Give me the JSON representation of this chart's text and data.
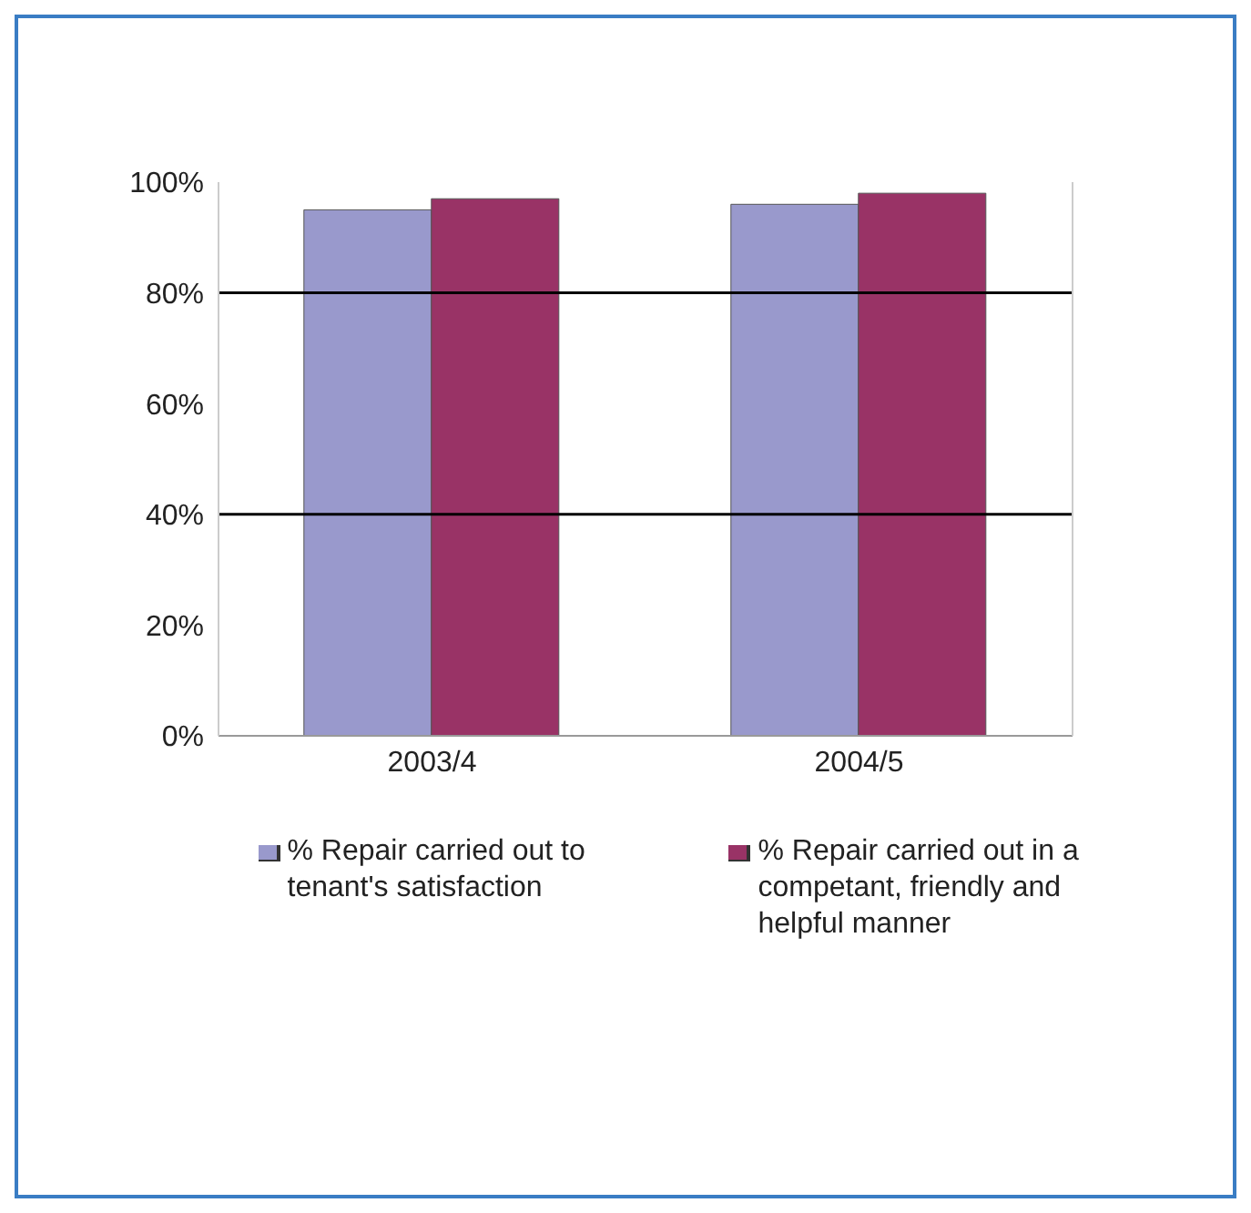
{
  "chart_data": {
    "type": "bar",
    "categories": [
      "2003/4",
      "2004/5"
    ],
    "series": [
      {
        "name": "% Repair carried out to tenant's satisfaction",
        "color": "#9999cc",
        "values": [
          95,
          96
        ]
      },
      {
        "name": "% Repair carried out in a competant, friendly and helpful manner",
        "color": "#993366",
        "values": [
          97,
          98
        ]
      }
    ],
    "ylim": [
      0,
      100
    ],
    "yticks": [
      {
        "value": 0,
        "label": "0%"
      },
      {
        "value": 20,
        "label": "20%"
      },
      {
        "value": 40,
        "label": "40%"
      },
      {
        "value": 60,
        "label": "60%"
      },
      {
        "value": 80,
        "label": "80%"
      },
      {
        "value": 100,
        "label": "100%"
      }
    ],
    "ref_lines": [
      {
        "axis": "y",
        "value": 40,
        "color": "#000000"
      },
      {
        "axis": "y",
        "value": 80,
        "color": "#000000"
      }
    ],
    "legend": "bottom"
  }
}
